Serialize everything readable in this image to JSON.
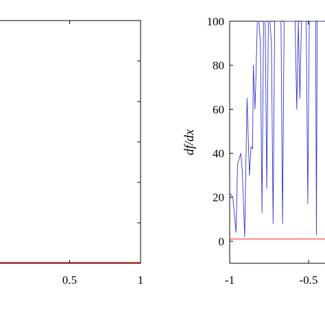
{
  "chart_data": [
    {
      "type": "line",
      "xlim": [
        0,
        1
      ],
      "xticks": [
        0.5,
        1
      ],
      "xtick_labels": [
        "0.5",
        "1"
      ],
      "ytick_count_right": 5,
      "grid": false,
      "series": [
        {
          "color": "#ff0000",
          "x": [
            0,
            1
          ],
          "y": [
            0,
            0
          ]
        }
      ]
    },
    {
      "type": "line",
      "ylabel": "df/dx",
      "xlim": [
        -1,
        0
      ],
      "ylim": [
        -10,
        100
      ],
      "xticks": [
        -1,
        -0.5
      ],
      "xtick_labels": [
        "-1",
        "-0.5"
      ],
      "yticks": [
        0,
        20,
        40,
        60,
        80,
        100
      ],
      "ytick_labels": [
        "0",
        "20",
        "40",
        "60",
        "80",
        "100"
      ],
      "grid": false,
      "series": [
        {
          "color": "#3333cc",
          "x": [
            -1.0,
            -0.98,
            -0.96,
            -0.95,
            -0.93,
            -0.92,
            -0.905,
            -0.89,
            -0.875,
            -0.865,
            -0.855,
            -0.85,
            -0.84,
            -0.835,
            -0.825,
            -0.815,
            -0.805,
            -0.795,
            -0.785,
            -0.775,
            -0.765,
            -0.755,
            -0.745,
            -0.735,
            -0.725,
            -0.715,
            -0.705,
            -0.695,
            -0.685,
            -0.675,
            -0.665,
            -0.655,
            -0.645,
            -0.635,
            -0.625,
            -0.615,
            -0.605,
            -0.595,
            -0.585,
            -0.575,
            -0.565,
            -0.555,
            -0.545,
            -0.535,
            -0.525,
            -0.515,
            -0.505,
            -0.495,
            -0.485,
            -0.475,
            -0.465,
            -0.455,
            -0.45,
            -0.445,
            -0.44,
            -0.43,
            -0.42,
            -0.4
          ],
          "y": [
            22,
            20,
            4,
            35,
            40,
            32,
            2,
            65,
            30,
            43,
            42,
            80,
            60,
            70,
            100,
            100,
            90,
            13,
            100,
            100,
            24,
            100,
            100,
            90,
            8,
            100,
            100,
            100,
            100,
            100,
            8,
            100,
            100,
            100,
            100,
            100,
            100,
            100,
            100,
            60,
            100,
            65,
            100,
            100,
            100,
            100,
            17,
            100,
            100,
            100,
            100,
            100,
            3,
            100,
            100,
            100,
            100,
            100
          ]
        },
        {
          "color": "#ff0000",
          "x": [
            -1,
            0
          ],
          "y": [
            1,
            1
          ]
        }
      ]
    }
  ]
}
